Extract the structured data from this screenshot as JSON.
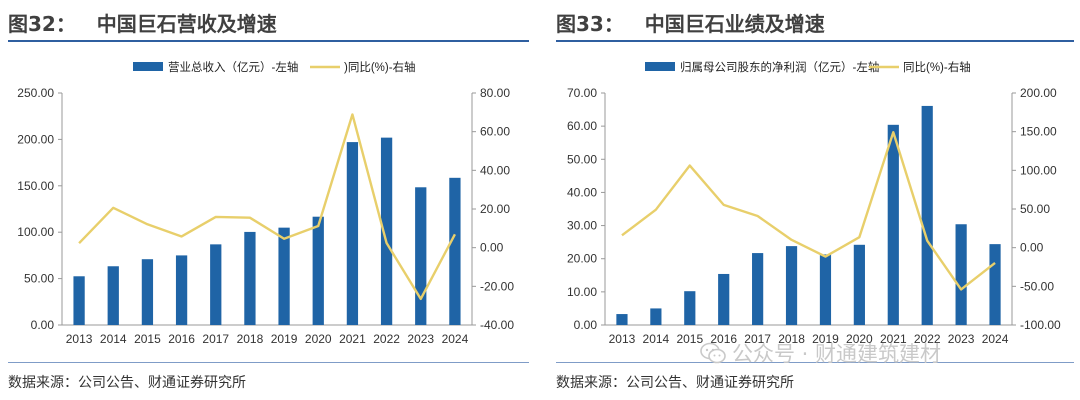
{
  "panels": [
    {
      "title": "图32：   中国巨石营收及增速",
      "source": "数据来源：公司公告、财通证券研究所",
      "chart_data": {
        "type": "bar",
        "categories": [
          "2013",
          "2014",
          "2015",
          "2016",
          "2017",
          "2018",
          "2019",
          "2020",
          "2021",
          "2022",
          "2023",
          "2024"
        ],
        "series": [
          {
            "name": "营业总收入（亿元）-左轴",
            "type": "bar",
            "axis": "left",
            "color": "#1f64a6",
            "values": [
              52.5,
              63.3,
              70.9,
              75.0,
              86.9,
              100.3,
              104.9,
              116.7,
              197.1,
              201.9,
              148.4,
              158.6
            ]
          },
          {
            "name": ")同比(%)-右轴",
            "type": "line",
            "axis": "right",
            "color": "#e8cf6b",
            "values": [
              2.3,
              20.6,
              12.1,
              5.8,
              15.9,
              15.5,
              4.6,
              11.2,
              68.9,
              2.4,
              -26.5,
              6.9
            ]
          }
        ],
        "y_left": {
          "min": 0,
          "max": 250,
          "step": 50,
          "decimals": 2
        },
        "y_right": {
          "min": -40,
          "max": 80,
          "step": 20,
          "decimals": 2
        },
        "legend": "top-center",
        "grid": false
      }
    },
    {
      "title": "图33：   中国巨石业绩及增速",
      "source": "数据来源：公司公告、财通证券研究所",
      "chart_data": {
        "type": "bar",
        "categories": [
          "2013",
          "2014",
          "2015",
          "2016",
          "2017",
          "2018",
          "2019",
          "2020",
          "2021",
          "2022",
          "2023",
          "2024"
        ],
        "series": [
          {
            "name": "归属母公司股东的净利润（亿元）-左轴",
            "type": "bar",
            "axis": "left",
            "color": "#1f64a6",
            "values": [
              3.3,
              5.0,
              10.2,
              15.4,
              21.7,
              23.8,
              21.3,
              24.2,
              60.4,
              66.1,
              30.4,
              24.4
            ]
          },
          {
            "name": "同比(%)-右轴",
            "type": "line",
            "axis": "right",
            "color": "#e8cf6b",
            "values": [
              16.0,
              49.1,
              106.2,
              55.3,
              41.0,
              10.1,
              -11.5,
              13.6,
              149.3,
              9.1,
              -54.0,
              -19.7
            ]
          }
        ],
        "y_left": {
          "min": 0,
          "max": 70,
          "step": 10,
          "decimals": 2
        },
        "y_right": {
          "min": -100,
          "max": 200,
          "step": 50,
          "decimals": 2
        },
        "legend": "top-center",
        "grid": false
      }
    }
  ],
  "watermark": {
    "text": "公众号 · 财通建筑建材",
    "icon": "wechat-icon"
  }
}
